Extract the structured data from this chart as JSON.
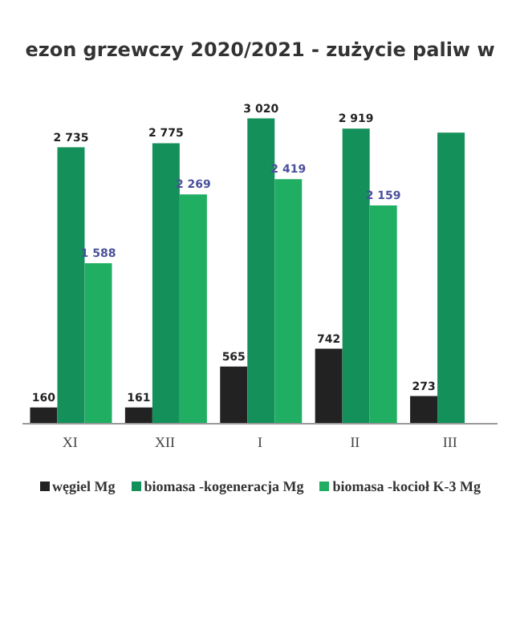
{
  "chart_data": {
    "type": "bar",
    "title": "ezon grzewczy 2020/2021 - zużycie paliw w",
    "categories": [
      "XI",
      "XII",
      "I",
      "II",
      "III"
    ],
    "series": [
      {
        "name": "węgiel Mg",
        "color": "#222222",
        "values": [
          160,
          161,
          565,
          742,
          273
        ],
        "value_labels": [
          "160",
          "161",
          "565",
          "742",
          "273"
        ]
      },
      {
        "name": "biomasa -kogeneracja Mg",
        "color": "#14905a",
        "values": [
          2735,
          2775,
          3020,
          2919,
          2880
        ],
        "value_labels": [
          "2 735",
          "2 775",
          "3 020",
          "2 919",
          null
        ]
      },
      {
        "name": "biomasa -kocioł K-3 Mg",
        "color": "#1fae62",
        "values": [
          1588,
          2269,
          2419,
          2159,
          null
        ],
        "value_labels": [
          "1 588",
          "2 269",
          "2 419",
          "2 159",
          null
        ]
      }
    ],
    "legend": "bottom",
    "grid": false
  }
}
